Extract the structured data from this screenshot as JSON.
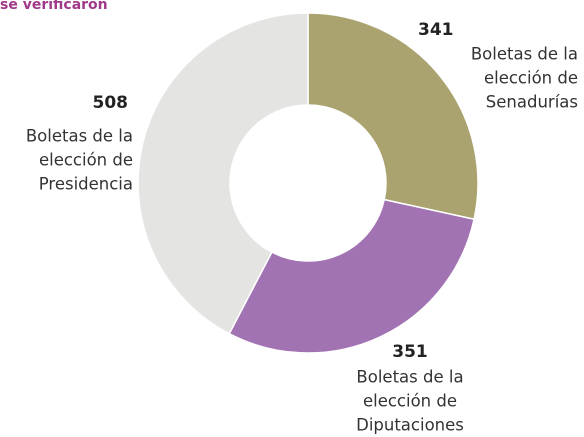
{
  "chart_data": {
    "type": "donut",
    "title": "se verificaron",
    "categories": [
      [
        "Boletas de la",
        "elección de",
        "Senadurías"
      ],
      [
        "Boletas de la",
        "elección de",
        "Diputaciones"
      ],
      [
        "Boletas de la",
        "elección de",
        "Presidencia"
      ]
    ],
    "values": [
      341,
      351,
      508
    ],
    "colors": [
      "#aaa370",
      "#a273b2",
      "#e4e4e2"
    ]
  }
}
